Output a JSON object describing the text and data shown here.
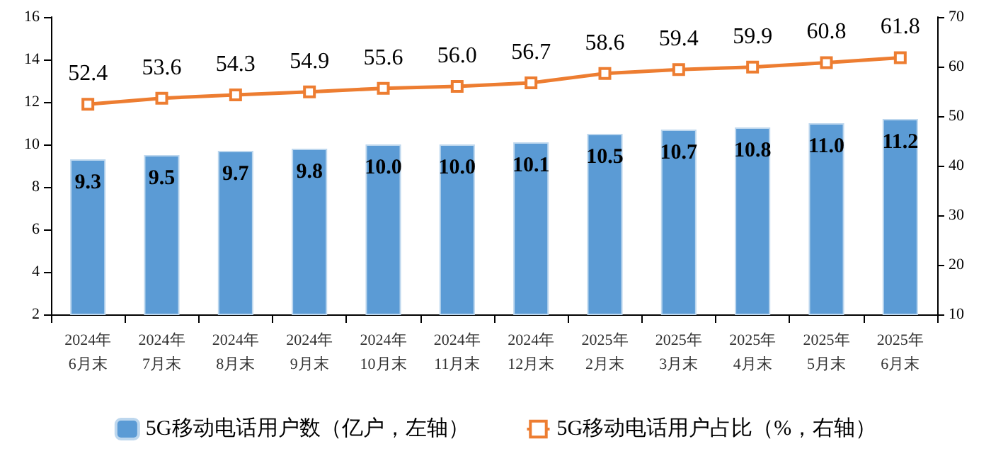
{
  "chart_data": {
    "type": "bar",
    "categories": [
      "2024年\n6月末",
      "2024年\n7月末",
      "2024年\n8月末",
      "2024年\n9月末",
      "2024年\n10月末",
      "2024年\n11月末",
      "2024年\n12月末",
      "2025年\n2月末",
      "2025年\n3月末",
      "2025年\n4月末",
      "2025年\n5月末",
      "2025年\n6月末"
    ],
    "series": [
      {
        "name": "5G移动电话用户数（亿户，左轴）",
        "color": "#5b9bd5",
        "values": [
          9.3,
          9.5,
          9.7,
          9.8,
          10.0,
          10.0,
          10.1,
          10.5,
          10.7,
          10.8,
          11.0,
          11.2
        ],
        "value_labels": [
          "9.3",
          "9.5",
          "9.7",
          "9.8",
          "10.0",
          "10.0",
          "10.1",
          "10.5",
          "10.7",
          "10.8",
          "11.0",
          "11.2"
        ]
      },
      {
        "name": "5G移动电话用户占比（%，右轴）",
        "type": "line",
        "axis": "y2",
        "color": "#ed7d31",
        "marker": "square",
        "values": [
          52.4,
          53.6,
          54.3,
          54.9,
          55.6,
          56.0,
          56.7,
          58.6,
          59.4,
          59.9,
          60.8,
          61.8
        ],
        "value_labels": [
          "52.4",
          "53.6",
          "54.3",
          "54.9",
          "55.6",
          "56.0",
          "56.7",
          "58.6",
          "59.4",
          "59.9",
          "60.8",
          "61.8"
        ]
      }
    ],
    "ylim": [
      2,
      16
    ],
    "yticks": [
      2,
      4,
      6,
      8,
      10,
      12,
      14,
      16
    ],
    "y2lim": [
      10,
      70
    ],
    "y2ticks": [
      10,
      20,
      30,
      40,
      50,
      60,
      70
    ],
    "grid": false,
    "legend": "bottom"
  }
}
